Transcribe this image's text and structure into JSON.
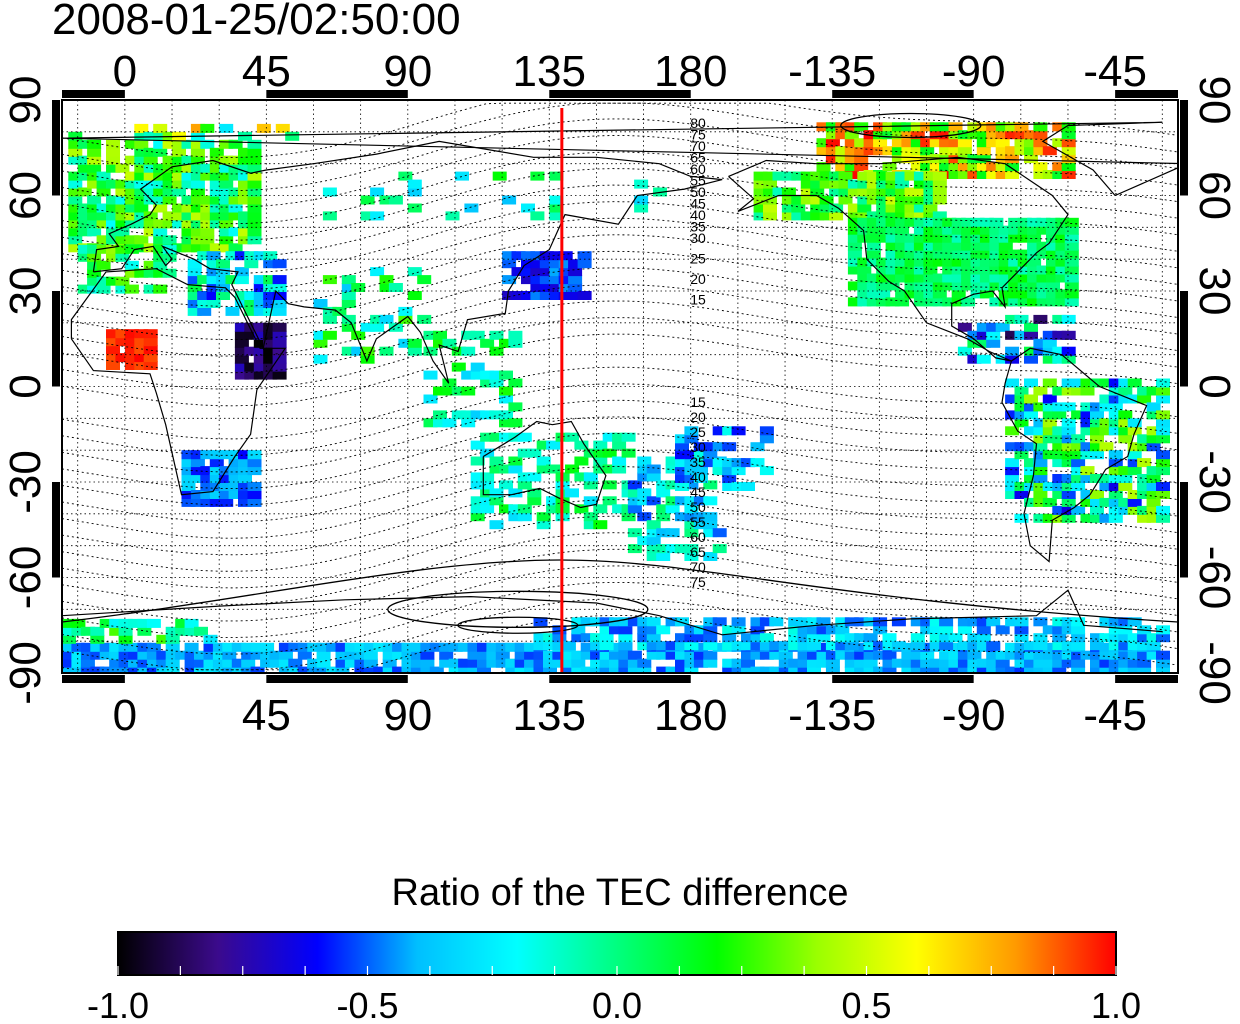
{
  "title": "2008-01-25/02:50:00",
  "map": {
    "x_ticks": [
      "0",
      "45",
      "90",
      "135",
      "180",
      "-135",
      "-90",
      "-45"
    ],
    "y_ticks_left": [
      "90",
      "60",
      "30",
      "0",
      "-30",
      "-60",
      "-90"
    ],
    "y_ticks_right": [
      "90",
      "60",
      "30",
      "0",
      "-30",
      "-60",
      "-90"
    ],
    "longitude_range": [
      -20,
      335
    ],
    "latitude_range": [
      -90,
      90
    ],
    "marker_longitude": 139,
    "marker_color": "#ff0000",
    "contour_labels_north": [
      "80",
      "75",
      "70",
      "65",
      "60",
      "55",
      "50",
      "45",
      "40",
      "35",
      "30",
      "25",
      "20",
      "15"
    ],
    "contour_labels_south": [
      "15",
      "20",
      "25",
      "30",
      "35",
      "40",
      "45",
      "50",
      "55",
      "60",
      "65",
      "70",
      "75"
    ]
  },
  "colorbar": {
    "title": "Ratio of the TEC difference",
    "tick_labels": [
      "-1.0",
      "-0.5",
      "0.0",
      "0.5",
      "1.0"
    ],
    "range": [
      -1.0,
      1.0
    ],
    "colors": [
      "#000000",
      "#3b0a8c",
      "#0000ff",
      "#00bfff",
      "#00ffff",
      "#00ff7f",
      "#00ff00",
      "#9aff00",
      "#ffff00",
      "#ff9900",
      "#ff0000"
    ]
  }
}
